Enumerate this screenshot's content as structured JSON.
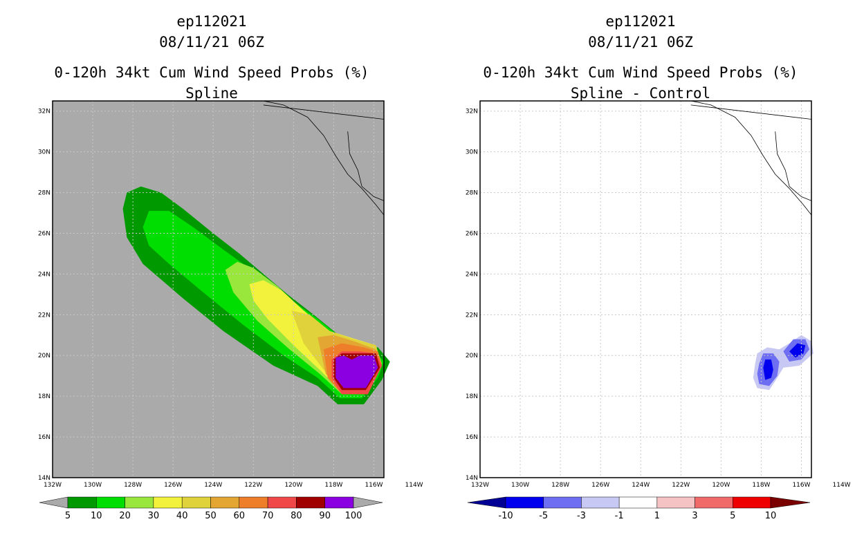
{
  "chart_data": [
    {
      "type": "heatmap",
      "title_lines": [
        "ep112021",
        "08/11/21 06Z",
        "0-120h 34kt Cum Wind Speed Probs (%)",
        "Spline"
      ],
      "x_ticks": [
        "132W",
        "130W",
        "128W",
        "126W",
        "124W",
        "122W",
        "120W",
        "118W",
        "116W",
        "114W"
      ],
      "y_ticks": [
        "14N",
        "16N",
        "18N",
        "20N",
        "22N",
        "24N",
        "26N",
        "28N",
        "30N",
        "32N"
      ],
      "lon_range": [
        -132,
        -115.5
      ],
      "lat_range": [
        14,
        32.5
      ],
      "grid": true,
      "background_color": "#aaaaaa",
      "colorbar": {
        "labels": [
          "5",
          "10",
          "20",
          "30",
          "40",
          "50",
          "60",
          "70",
          "80",
          "90",
          "100"
        ],
        "colors": [
          "#009900",
          "#00dd00",
          "#99e63c",
          "#f2f23c",
          "#e0d23a",
          "#e3a633",
          "#ef7e2b",
          "#f04848",
          "#a00000",
          "#8a00e0"
        ]
      },
      "contours": [
        {
          "level": 5,
          "color": "#009900",
          "points": [
            [
              -128.5,
              27.2
            ],
            [
              -128.3,
              28
            ],
            [
              -127.6,
              28.3
            ],
            [
              -126.6,
              28
            ],
            [
              -125.5,
              27.2
            ],
            [
              -124,
              26
            ],
            [
              -122.7,
              25
            ],
            [
              -121.5,
              24
            ],
            [
              -120.3,
              23
            ],
            [
              -119,
              22
            ],
            [
              -117.5,
              20.8
            ],
            [
              -116.7,
              20.3
            ],
            [
              -115.8,
              20.4
            ],
            [
              -115.2,
              19.7
            ],
            [
              -115.6,
              18.8
            ],
            [
              -116.5,
              17.6
            ],
            [
              -117.8,
              17.6
            ],
            [
              -118.8,
              18.5
            ],
            [
              -121,
              19.5
            ],
            [
              -123.5,
              21.2
            ],
            [
              -125.5,
              22.8
            ],
            [
              -127.5,
              24.5
            ],
            [
              -128.3,
              25.8
            ]
          ]
        },
        {
          "level": 10,
          "color": "#00dd00",
          "points": [
            [
              -127.5,
              26.3
            ],
            [
              -127.2,
              27.1
            ],
            [
              -126.2,
              27.1
            ],
            [
              -125,
              26.3
            ],
            [
              -123.5,
              25.2
            ],
            [
              -121.8,
              24
            ],
            [
              -120.5,
              23
            ],
            [
              -118.8,
              21.8
            ],
            [
              -117.3,
              20.6
            ],
            [
              -116.2,
              20.5
            ],
            [
              -115.5,
              19.7
            ],
            [
              -115.8,
              18.9
            ],
            [
              -116.6,
              17.9
            ],
            [
              -117.7,
              17.9
            ],
            [
              -118.8,
              18.9
            ],
            [
              -120.5,
              20
            ],
            [
              -122.5,
              21.5
            ],
            [
              -124.5,
              23.1
            ],
            [
              -126.2,
              24.5
            ],
            [
              -127.2,
              25.4
            ]
          ]
        },
        {
          "level": 20,
          "color": "#99e63c",
          "points": [
            [
              -123.4,
              24.2
            ],
            [
              -122.8,
              24.6
            ],
            [
              -122,
              24.3
            ],
            [
              -120.8,
              23.4
            ],
            [
              -119.6,
              22.3
            ],
            [
              -118.3,
              21.2
            ],
            [
              -117,
              20.7
            ],
            [
              -115.9,
              20.5
            ],
            [
              -115.6,
              19.6
            ],
            [
              -116.5,
              18.2
            ],
            [
              -117.6,
              18.1
            ],
            [
              -118.7,
              19.1
            ],
            [
              -120.2,
              20.3
            ],
            [
              -121.8,
              21.7
            ],
            [
              -123,
              23.1
            ]
          ]
        },
        {
          "level": 30,
          "color": "#f2f23c",
          "points": [
            [
              -122.2,
              23.5
            ],
            [
              -121.5,
              23.7
            ],
            [
              -120.6,
              23.2
            ],
            [
              -119.5,
              22.2
            ],
            [
              -118.2,
              21.2
            ],
            [
              -116.9,
              20.8
            ],
            [
              -115.9,
              20.5
            ],
            [
              -115.7,
              19.6
            ],
            [
              -116.5,
              18.3
            ],
            [
              -117.6,
              18.2
            ],
            [
              -118.6,
              19.2
            ],
            [
              -120,
              20.5
            ],
            [
              -121.3,
              21.8
            ],
            [
              -122,
              22.7
            ]
          ]
        },
        {
          "level": 40,
          "color": "#e0d23a",
          "points": [
            [
              -120.1,
              22.2
            ],
            [
              -119.2,
              22
            ],
            [
              -118.2,
              21.2
            ],
            [
              -117,
              20.8
            ],
            [
              -115.9,
              20.5
            ],
            [
              -115.7,
              19.6
            ],
            [
              -116.4,
              18.3
            ],
            [
              -117.5,
              18.2
            ],
            [
              -118.5,
              19.3
            ],
            [
              -119.5,
              20.6
            ]
          ]
        },
        {
          "level": 50,
          "color": "#e3a633",
          "points": [
            [
              -118.8,
              20.9
            ],
            [
              -118,
              21
            ],
            [
              -117,
              20.7
            ],
            [
              -115.9,
              20.3
            ],
            [
              -115.7,
              19.5
            ],
            [
              -116.4,
              18.2
            ],
            [
              -117.5,
              18.1
            ],
            [
              -118.4,
              19.1
            ]
          ]
        },
        {
          "level": 60,
          "color": "#ef7e2b",
          "points": [
            [
              -118.5,
              20.3
            ],
            [
              -117.6,
              20.6
            ],
            [
              -116.5,
              20.4
            ],
            [
              -115.8,
              20.2
            ],
            [
              -115.6,
              19.5
            ],
            [
              -116.3,
              18.1
            ],
            [
              -117.6,
              18.1
            ],
            [
              -118.3,
              18.9
            ]
          ]
        },
        {
          "level": 70,
          "color": "#f04848",
          "points": [
            [
              -118.1,
              19.8
            ],
            [
              -117.6,
              20.2
            ],
            [
              -116.7,
              20.2
            ],
            [
              -115.9,
              20.1
            ],
            [
              -115.6,
              19.5
            ],
            [
              -116.3,
              18.1
            ],
            [
              -117.6,
              18.1
            ],
            [
              -118.1,
              18.9
            ]
          ]
        },
        {
          "level": 80,
          "color": "#a00000",
          "points": [
            [
              -118,
              19.8
            ],
            [
              -117.6,
              20.1
            ],
            [
              -116.7,
              20.1
            ],
            [
              -115.9,
              20.1
            ],
            [
              -115.7,
              19.4
            ],
            [
              -116.4,
              18.3
            ],
            [
              -117.6,
              18.3
            ],
            [
              -118,
              18.9
            ]
          ]
        },
        {
          "level": 90,
          "color": "#8a00e0",
          "points": [
            [
              -117.9,
              19.9
            ],
            [
              -117.5,
              20
            ],
            [
              -117.1,
              19.8
            ],
            [
              -116.7,
              20
            ],
            [
              -116,
              20
            ],
            [
              -115.8,
              19.4
            ],
            [
              -116.4,
              18.4
            ],
            [
              -117.5,
              18.4
            ],
            [
              -117.9,
              18.9
            ]
          ]
        }
      ]
    },
    {
      "type": "heatmap",
      "title_lines": [
        "ep112021",
        "08/11/21 06Z",
        "0-120h 34kt Cum Wind Speed Probs (%)",
        "Spline - Control"
      ],
      "x_ticks": [
        "132W",
        "130W",
        "128W",
        "126W",
        "124W",
        "122W",
        "120W",
        "118W",
        "116W",
        "114W"
      ],
      "y_ticks": [
        "14N",
        "16N",
        "18N",
        "20N",
        "22N",
        "24N",
        "26N",
        "28N",
        "30N",
        "32N"
      ],
      "lon_range": [
        -132,
        -115.5
      ],
      "lat_range": [
        14,
        32.5
      ],
      "grid": true,
      "background_color": "#ffffff",
      "colorbar": {
        "labels": [
          "-10",
          "-5",
          "-3",
          "-1",
          "1",
          "3",
          "5",
          "10"
        ],
        "colors": [
          "#000095",
          "#0000ee",
          "#6e6ef2",
          "#c8c8f5",
          "#ffffff",
          "#f5c3c3",
          "#f06a6a",
          "#ee0000",
          "#7a0000"
        ]
      },
      "contours": [
        {
          "level": -1,
          "color": "#c8c8f5",
          "points": [
            [
              -118.3,
              19.6
            ],
            [
              -118.2,
              20.1
            ],
            [
              -117.7,
              20.4
            ],
            [
              -117.1,
              20.3
            ],
            [
              -116.6,
              20.6
            ],
            [
              -116,
              21
            ],
            [
              -115.5,
              20.7
            ],
            [
              -115.4,
              20.1
            ],
            [
              -116.1,
              19.5
            ],
            [
              -116.9,
              19.4
            ],
            [
              -117.2,
              18.9
            ],
            [
              -117.6,
              18.3
            ],
            [
              -118.2,
              18.4
            ],
            [
              -118.4,
              18.9
            ]
          ]
        },
        {
          "level": -3,
          "color": "#6e6ef2",
          "points": [
            [
              -118.1,
              19.6
            ],
            [
              -117.9,
              20.1
            ],
            [
              -117.4,
              20.1
            ],
            [
              -117.1,
              19.7
            ],
            [
              -117.2,
              19
            ],
            [
              -117.6,
              18.5
            ],
            [
              -118.1,
              18.6
            ],
            [
              -118.2,
              19.1
            ]
          ]
        },
        {
          "level": -3,
          "color": "#6e6ef2",
          "points": [
            [
              -116.9,
              20.2
            ],
            [
              -116.4,
              20.8
            ],
            [
              -115.8,
              20.8
            ],
            [
              -115.6,
              20.3
            ],
            [
              -116,
              19.8
            ],
            [
              -116.6,
              19.7
            ]
          ]
        },
        {
          "level": -5,
          "color": "#0000ee",
          "points": [
            [
              -117.9,
              19.4
            ],
            [
              -117.8,
              19.8
            ],
            [
              -117.5,
              19.8
            ],
            [
              -117.4,
              19.3
            ],
            [
              -117.5,
              18.9
            ],
            [
              -117.8,
              18.8
            ]
          ]
        },
        {
          "level": -5,
          "color": "#0000ee",
          "points": [
            [
              -116.6,
              20.2
            ],
            [
              -116.2,
              20.6
            ],
            [
              -115.8,
              20.5
            ],
            [
              -115.9,
              20.1
            ],
            [
              -116.3,
              19.9
            ]
          ]
        }
      ]
    }
  ]
}
